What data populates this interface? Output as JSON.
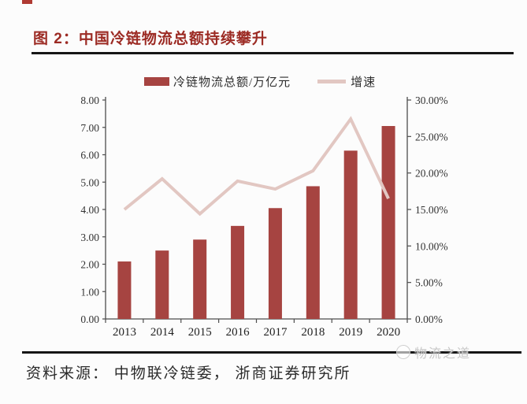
{
  "page": {
    "figure_title": "图 2：中国冷链物流总额持续攀升",
    "source_text": "资料来源： 中物联冷链委， 浙商证券研究所",
    "watermark_text": "物流之道"
  },
  "legend": {
    "bar_label": "冷链物流总额/万亿元",
    "line_label": "增速"
  },
  "colors": {
    "bar": "#a64441",
    "line": "#e2c7c2",
    "title": "#9c2b24",
    "axis": "#4d4d4d",
    "rule": "#161616",
    "tick_text": "#333333",
    "watermark": "#c6c6c6"
  },
  "chart_data": {
    "type": "bar",
    "subtype": "bar+line-combo",
    "title": "中国冷链物流总额持续攀升",
    "categories": [
      "2013",
      "2014",
      "2015",
      "2016",
      "2017",
      "2018",
      "2019",
      "2020"
    ],
    "series": [
      {
        "name": "冷链物流总额/万亿元",
        "type": "bar",
        "axis": "left",
        "values": [
          2.1,
          2.5,
          2.9,
          3.4,
          4.05,
          4.85,
          6.15,
          7.05
        ]
      },
      {
        "name": "增速",
        "type": "line",
        "axis": "right",
        "values": [
          15.0,
          19.2,
          14.4,
          18.9,
          17.8,
          20.3,
          27.4,
          16.5
        ]
      }
    ],
    "left_axis": {
      "min": 0,
      "max": 8,
      "step": 1,
      "tick_labels": [
        "0.00",
        "1.00",
        "2.00",
        "3.00",
        "4.00",
        "5.00",
        "6.00",
        "7.00",
        "8.00"
      ]
    },
    "right_axis": {
      "min": 0,
      "max": 30,
      "step": 5,
      "tick_labels": [
        "0.00%",
        "5.00%",
        "10.00%",
        "15.00%",
        "20.00%",
        "25.00%",
        "30.00%"
      ]
    },
    "xlabel": "",
    "ylabel_left": "万亿元",
    "ylabel_right": "%",
    "grid": false,
    "legend_position": "top"
  }
}
